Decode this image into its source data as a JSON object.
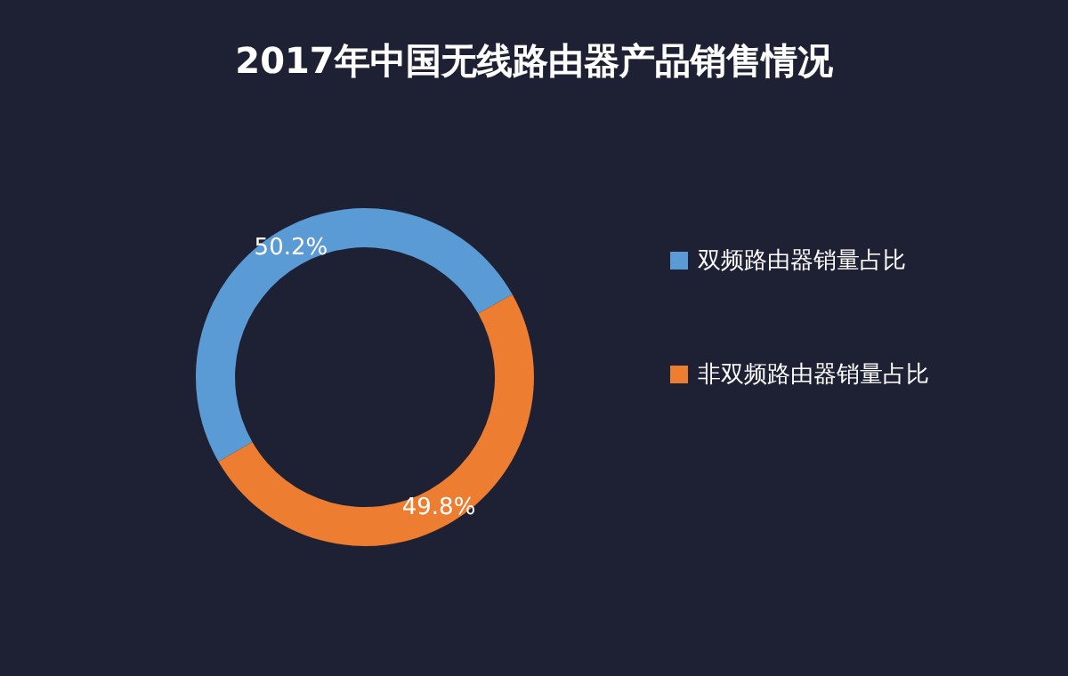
{
  "chart_data": {
    "type": "donut",
    "title": "2017年中国无线路由器产品销售情况",
    "categories": [
      "双频路由器销量占比",
      "非双频路由器销量占比"
    ],
    "values": [
      50.2,
      49.8
    ],
    "colors": [
      "#5b9bd5",
      "#ed7d31"
    ],
    "value_labels": [
      "50.2%",
      "49.8%"
    ],
    "legend": "right"
  }
}
